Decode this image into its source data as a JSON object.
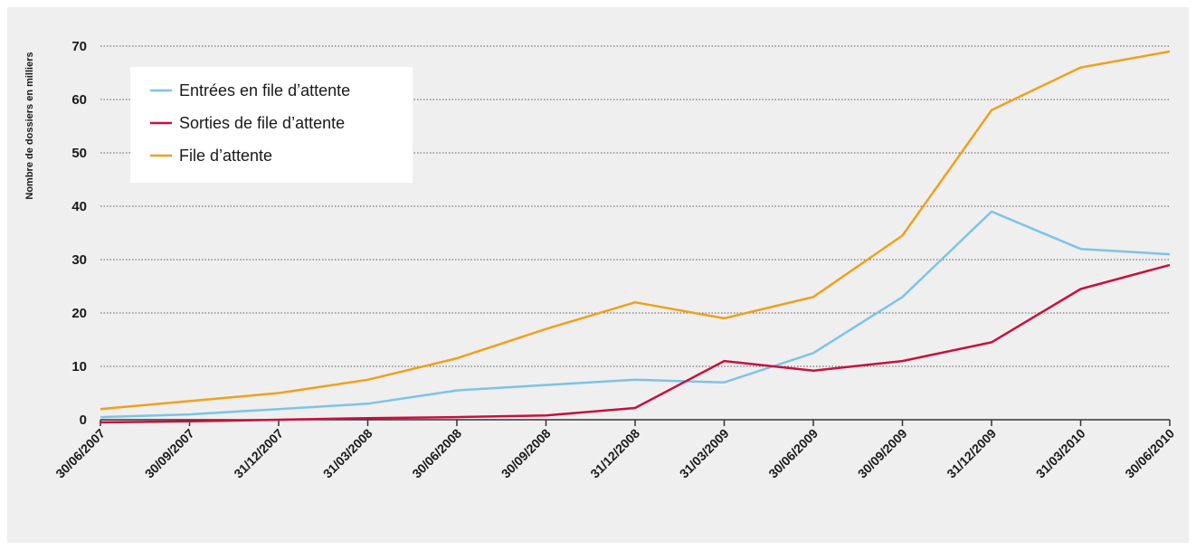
{
  "chart_data": {
    "type": "line",
    "title": "",
    "xlabel": "",
    "ylabel": "Nombre de dossiers en milliers",
    "ylim": [
      0,
      70
    ],
    "yticks": [
      0,
      10,
      20,
      30,
      40,
      50,
      60,
      70
    ],
    "grid": "horizontal dotted",
    "legend_position": "top-left",
    "categories": [
      "30/06/2007",
      "30/09/2007",
      "31/12/2007",
      "31/03/2008",
      "30/06/2008",
      "30/09/2008",
      "31/12/2008",
      "31/03/2009",
      "30/06/2009",
      "30/09/2009",
      "31/12/2009",
      "31/03/2010",
      "30/06/2010"
    ],
    "series": [
      {
        "name": "Entrées en file d’attente",
        "color": "#7ec3e6",
        "values": [
          0.5,
          1,
          2,
          3,
          5.5,
          6.5,
          7.5,
          7,
          12.5,
          23,
          39,
          32,
          31
        ]
      },
      {
        "name": "Sorties de file d’attente",
        "color": "#c8103e",
        "values": [
          -0.5,
          -0.3,
          0,
          0.3,
          0.5,
          0.8,
          2.2,
          11,
          9.2,
          11,
          14.5,
          24.5,
          29
        ]
      },
      {
        "name": "File d’attente",
        "color": "#f0a01c",
        "values": [
          2,
          3.5,
          5,
          7.5,
          11.5,
          17,
          22,
          19,
          23,
          34.5,
          58,
          66,
          69
        ]
      }
    ]
  }
}
